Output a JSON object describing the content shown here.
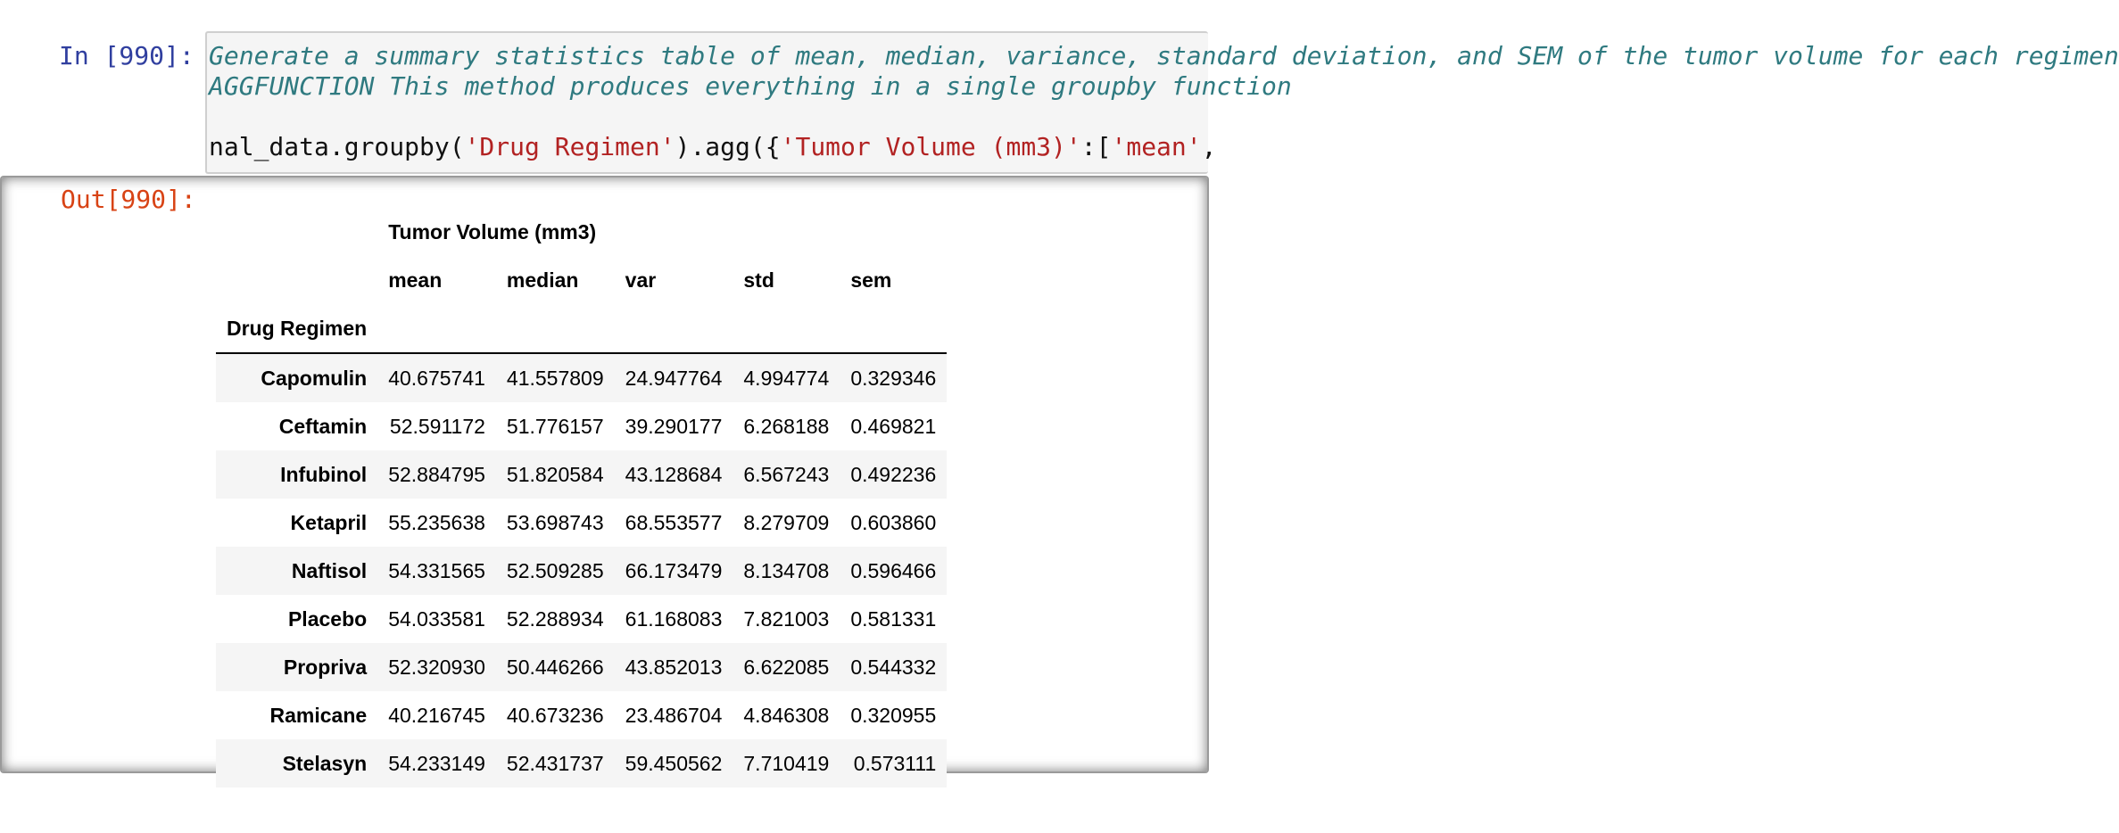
{
  "input_cell": {
    "prompt": "In [990]:",
    "comment_line_1": "Generate a summary statistics table of mean, median, variance, standard deviation, and SEM of the tumor volume for each regimen",
    "comment_line_2": "AGGFUNCTION This method produces everything in a single groupby function",
    "code_parts": {
      "a": "nal_data.groupby(",
      "b": "'Drug Regimen'",
      "c": ").agg({",
      "d": "'Tumor Volume (mm3)'",
      "e": ":[",
      "f": "'mean'",
      "g": ","
    }
  },
  "output_cell": {
    "prompt": "Out[990]:",
    "table": {
      "top_header": "Tumor Volume (mm3)",
      "columns": [
        "mean",
        "median",
        "var",
        "std",
        "sem"
      ],
      "index_name": "Drug Regimen",
      "rows": [
        {
          "label": "Capomulin",
          "values": [
            "40.675741",
            "41.557809",
            "24.947764",
            "4.994774",
            "0.329346"
          ]
        },
        {
          "label": "Ceftamin",
          "values": [
            "52.591172",
            "51.776157",
            "39.290177",
            "6.268188",
            "0.469821"
          ]
        },
        {
          "label": "Infubinol",
          "values": [
            "52.884795",
            "51.820584",
            "43.128684",
            "6.567243",
            "0.492236"
          ]
        },
        {
          "label": "Ketapril",
          "values": [
            "55.235638",
            "53.698743",
            "68.553577",
            "8.279709",
            "0.603860"
          ]
        },
        {
          "label": "Naftisol",
          "values": [
            "54.331565",
            "52.509285",
            "66.173479",
            "8.134708",
            "0.596466"
          ]
        },
        {
          "label": "Placebo",
          "values": [
            "54.033581",
            "52.288934",
            "61.168083",
            "7.821003",
            "0.581331"
          ]
        },
        {
          "label": "Propriva",
          "values": [
            "52.320930",
            "50.446266",
            "43.852013",
            "6.622085",
            "0.544332"
          ]
        },
        {
          "label": "Ramicane",
          "values": [
            "40.216745",
            "40.673236",
            "23.486704",
            "4.846308",
            "0.320955"
          ]
        },
        {
          "label": "Stelasyn",
          "values": [
            "54.233149",
            "52.431737",
            "59.450562",
            "7.710419",
            "0.573111"
          ]
        }
      ]
    }
  },
  "colors": {
    "in_prompt": "#303f9f",
    "out_prompt": "#d84315",
    "comment": "#2f7a80",
    "string": "#b22222"
  }
}
